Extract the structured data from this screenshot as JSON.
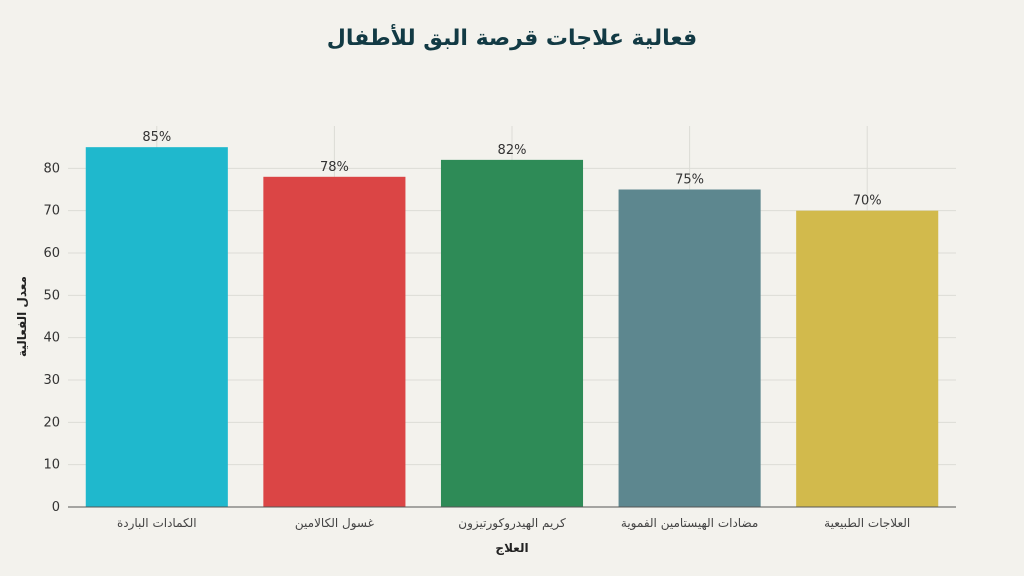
{
  "chart_data": {
    "type": "bar",
    "title": "فعالية علاجات قرصة البق للأطفال",
    "xlabel": "العلاج",
    "ylabel": "معدل الفعالية",
    "categories": [
      "الكمادات الباردة",
      "غسول الكالامين",
      "كريم الهيدروكورتيزون",
      "مضادات الهيستامين الفموية",
      "العلاجات الطبيعية"
    ],
    "values": [
      85,
      78,
      82,
      75,
      70
    ],
    "data_labels": [
      "85%",
      "78%",
      "82%",
      "75%",
      "70%"
    ],
    "colors": [
      "#1fb8cd",
      "#db4545",
      "#2e8b57",
      "#5d878f",
      "#d2ba4c"
    ],
    "ylim": [
      0,
      90
    ],
    "yticks": [
      0,
      10,
      20,
      30,
      40,
      50,
      60,
      70,
      80
    ],
    "grid": true,
    "legend": "none"
  }
}
